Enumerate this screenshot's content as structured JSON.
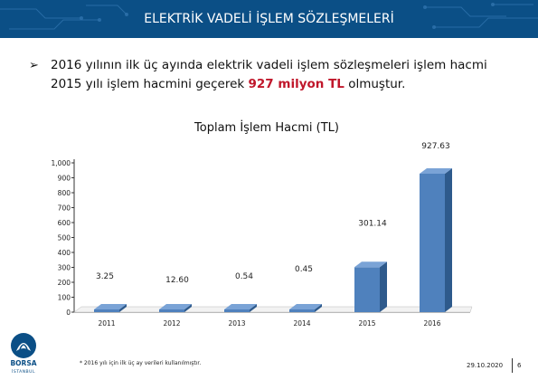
{
  "header": {
    "title": "ELEKTRİK VADELİ İŞLEM SÖZLEŞMELERİ"
  },
  "bullet": {
    "text_before": "2016 yılının ilk üç ayında elektrik vadeli işlem sözleşmeleri işlem hacmi 2015 yılı işlem hacmini geçerek ",
    "highlight": "927 milyon TL",
    "text_after": " olmuştur."
  },
  "colors": {
    "header_bg": "#0b4f86",
    "highlight": "#c0172b",
    "bar_front": "#4f81bd",
    "bar_side": "#2e5a8c",
    "bar_top": "#7aa3d6"
  },
  "chart_data": {
    "type": "bar",
    "title": "Toplam İşlem Hacmi (TL)",
    "categories": [
      "2011",
      "2012",
      "2013",
      "2014",
      "2015",
      "2016"
    ],
    "values": [
      3.25,
      12.6,
      0.54,
      0.45,
      301.14,
      927.63
    ],
    "data_labels": [
      "3.25",
      "12.60",
      "0.54",
      "0.45",
      "301.14",
      "927.63"
    ],
    "ylim": [
      0,
      1000
    ],
    "yticks": [
      "0",
      "100",
      "200",
      "300",
      "400",
      "500",
      "600",
      "700",
      "800",
      "900",
      "1,000"
    ],
    "grid": false
  },
  "footnote": "* 2016 yılı için ilk üç ay verileri kullanılmıştır.",
  "logo": {
    "name": "BORSA",
    "sub": "İSTANBUL"
  },
  "footer": {
    "date": "29.10.2020",
    "page": "6"
  }
}
